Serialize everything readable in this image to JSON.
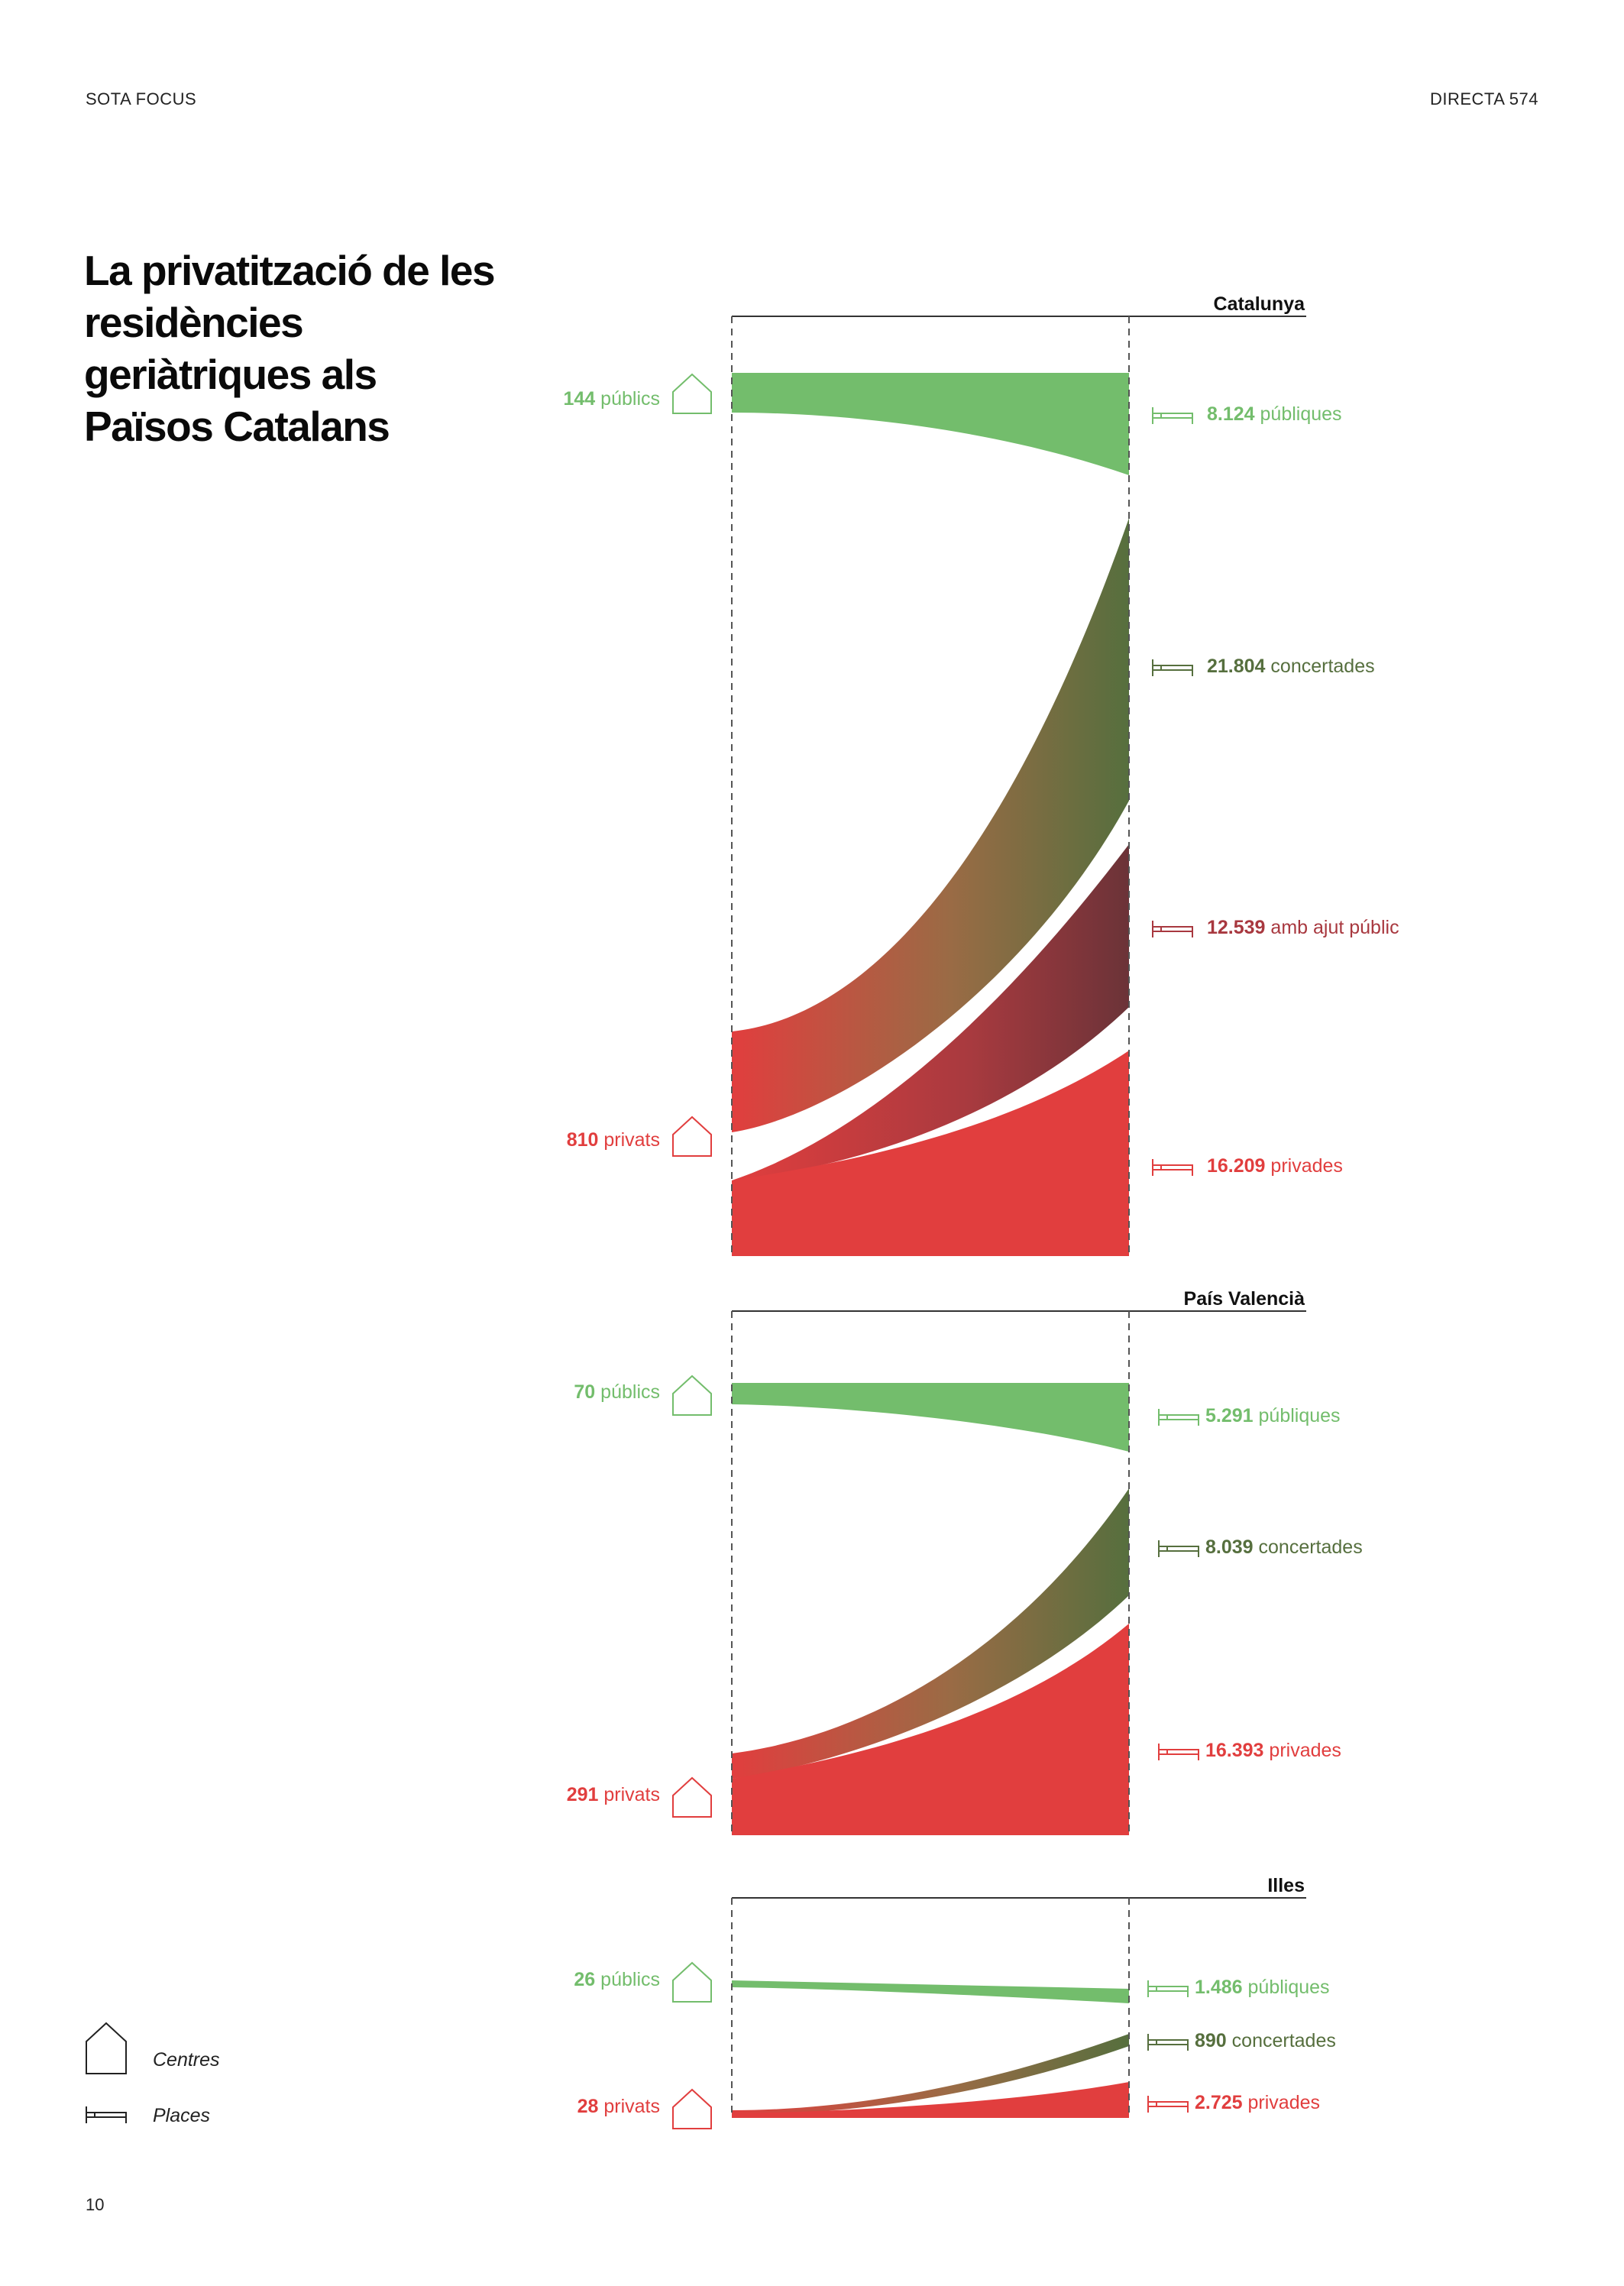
{
  "header": {
    "left": "SOTA FOCUS",
    "right": "DIRECTA 574"
  },
  "title": "La privatització de les residències geriàtriques als Països Catalans",
  "page_number": "10",
  "legend": {
    "centres_label": "Centres",
    "places_label": "Places"
  },
  "colors": {
    "public": "#73bd6c",
    "concerted": "#566f3e",
    "aid": "#a8383f",
    "private": "#e13e3e",
    "axis": "#444444"
  },
  "regions": [
    {
      "name": "Catalunya",
      "centres": [
        {
          "value": "144",
          "label": "públics",
          "type": "public"
        },
        {
          "value": "810",
          "label": "privats",
          "type": "private"
        }
      ],
      "places": [
        {
          "value": "8.124",
          "label": "públiques",
          "type": "public"
        },
        {
          "value": "21.804",
          "label": "concertades",
          "type": "concerted"
        },
        {
          "value": "12.539",
          "label": "amb ajut públic",
          "type": "aid"
        },
        {
          "value": "16.209",
          "label": "privades",
          "type": "private"
        }
      ]
    },
    {
      "name": "País Valencià",
      "centres": [
        {
          "value": "70",
          "label": "públics",
          "type": "public"
        },
        {
          "value": "291",
          "label": "privats",
          "type": "private"
        }
      ],
      "places": [
        {
          "value": "5.291",
          "label": "públiques",
          "type": "public"
        },
        {
          "value": "8.039",
          "label": "concertades",
          "type": "concerted"
        },
        {
          "value": "16.393",
          "label": "privades",
          "type": "private"
        }
      ]
    },
    {
      "name": "Illes",
      "centres": [
        {
          "value": "26",
          "label": "públics",
          "type": "public"
        },
        {
          "value": "28",
          "label": "privats",
          "type": "private"
        }
      ],
      "places": [
        {
          "value": "1.486",
          "label": "públiques",
          "type": "public"
        },
        {
          "value": "890",
          "label": "concertades",
          "type": "concerted"
        },
        {
          "value": "2.725",
          "label": "privades",
          "type": "private"
        }
      ]
    }
  ]
}
